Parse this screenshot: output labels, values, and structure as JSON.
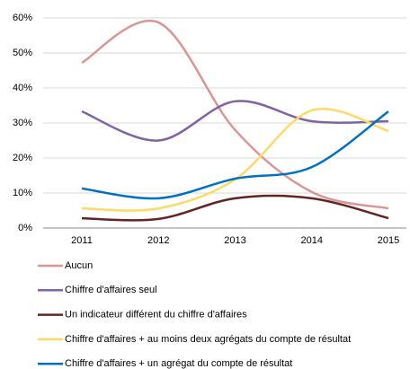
{
  "chart_data": {
    "type": "line",
    "categories": [
      "2011",
      "2012",
      "2013",
      "2014",
      "2015"
    ],
    "series": [
      {
        "name": "Aucun",
        "color": "#d99694",
        "values": [
          47.2,
          58.7,
          28,
          10.3,
          5.6
        ]
      },
      {
        "name": "Chiffre d'affaires seul",
        "color": "#8064a2",
        "values": [
          33.3,
          25,
          36.2,
          30.5,
          30.5
        ]
      },
      {
        "name": "Un indicateur différent du chiffre d'affaires",
        "color": "#632523",
        "values": [
          2.8,
          2.6,
          8.5,
          8.5,
          2.8
        ]
      },
      {
        "name": "Chiffre d'affaires + au moins deux agrégats du compte de résultat",
        "color": "#ffd966",
        "values": [
          5.6,
          5.6,
          13.9,
          33.6,
          27.7
        ]
      },
      {
        "name": "Chiffre d'affaires + un agrégat du compte de résultat",
        "color": "#0070c0",
        "values": [
          11.3,
          8.5,
          14.1,
          17.4,
          33.3
        ]
      }
    ],
    "ylim": [
      0,
      60
    ],
    "yticks": [
      {
        "value": 0,
        "label": "0%"
      },
      {
        "value": 10,
        "label": "10%"
      },
      {
        "value": 20,
        "label": "20%"
      },
      {
        "value": 30,
        "label": "30%"
      },
      {
        "value": 40,
        "label": "40%"
      },
      {
        "value": 50,
        "label": "50%"
      },
      {
        "value": 60,
        "label": "60%"
      }
    ],
    "grid": true,
    "smooth": true,
    "legend": "bottom"
  }
}
